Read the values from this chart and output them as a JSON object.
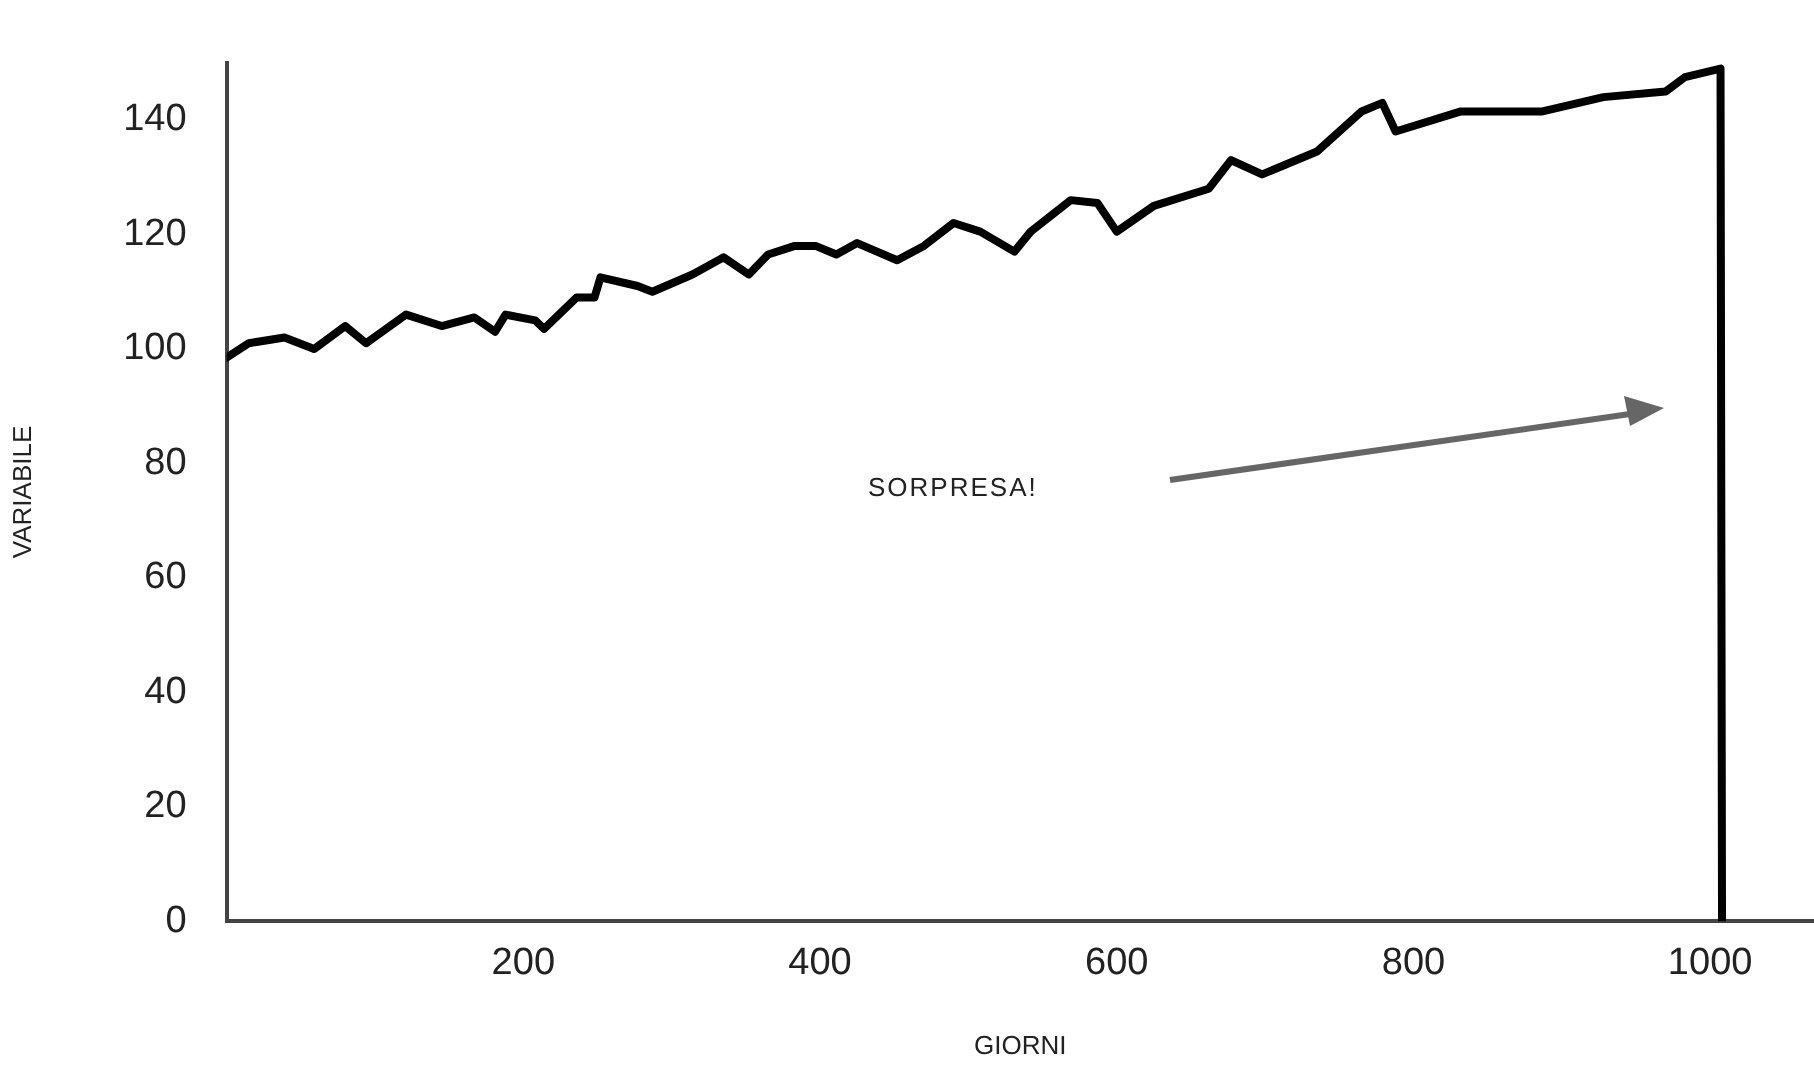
{
  "chart_data": {
    "type": "line",
    "xlabel": "GIORNI",
    "ylabel": "VARIABILE",
    "xlim": [
      0,
      1070
    ],
    "xticks": [
      200,
      400,
      600,
      800,
      1000
    ],
    "ylim": [
      0,
      150
    ],
    "yticks": [
      0,
      20,
      40,
      60,
      80,
      100,
      120,
      140
    ],
    "grid": false,
    "legend": false,
    "marker": "none",
    "line_style": "solid",
    "annotations": [
      "SORPRESA!"
    ],
    "series": [
      {
        "color": "#000000",
        "x": [
          0,
          15,
          39,
          59,
          80,
          94,
          121,
          145,
          167,
          181,
          188,
          208,
          214,
          236,
          248,
          252,
          277,
          287,
          314,
          335,
          352,
          365,
          383,
          397,
          411,
          425,
          452,
          470,
          490,
          508,
          531,
          542,
          569,
          587,
          600,
          625,
          662,
          677,
          698,
          735,
          765,
          779,
          788,
          832,
          863,
          887,
          928,
          970,
          983,
          1007,
          1008
        ],
        "values": [
          98.5,
          101,
          102,
          100,
          104,
          101,
          106,
          104,
          105.5,
          103,
          106,
          105,
          103.5,
          109,
          109,
          112.5,
          111,
          110,
          113,
          116,
          113,
          116.5,
          118,
          118,
          116.5,
          118.5,
          115.5,
          118,
          122,
          120.5,
          117,
          120.5,
          126,
          125.5,
          120.5,
          125,
          128,
          133,
          130.5,
          134.5,
          141.5,
          143,
          138,
          141.5,
          141.5,
          141.5,
          144,
          145,
          147.5,
          149,
          0
        ]
      }
    ]
  }
}
